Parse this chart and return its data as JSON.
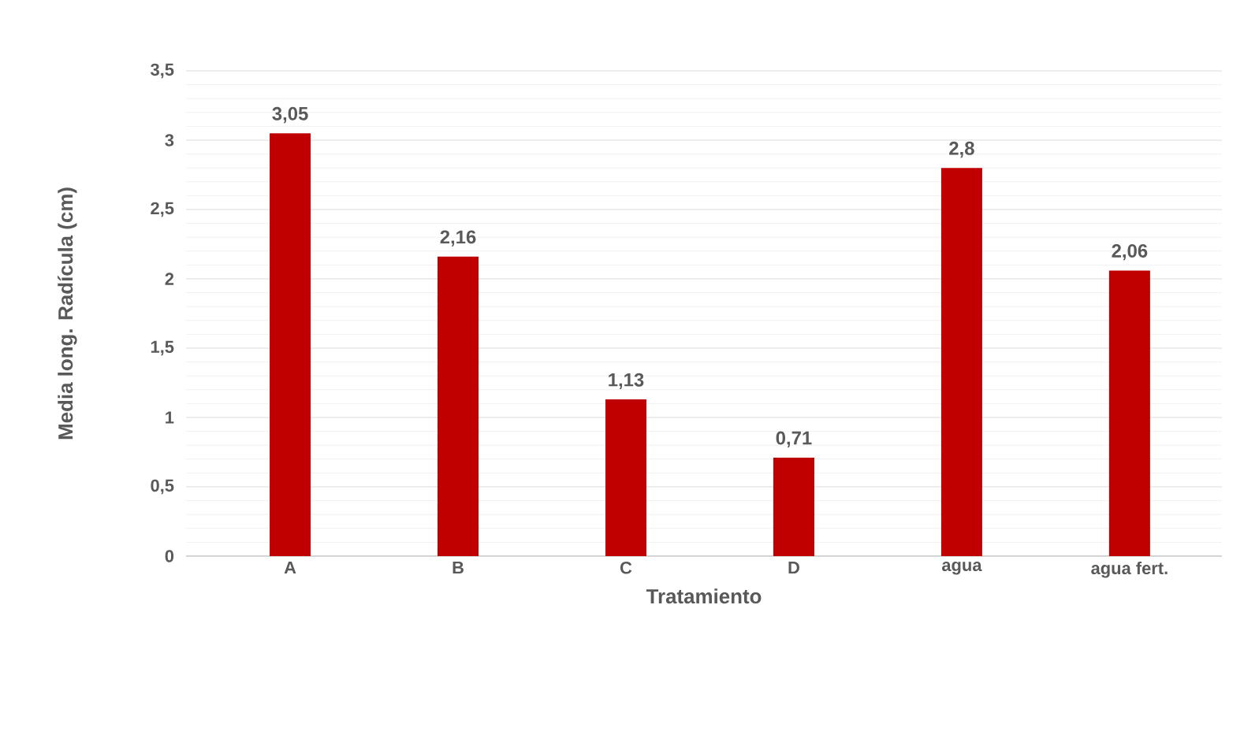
{
  "chart_data": {
    "type": "bar",
    "xlabel": "Tratamiento",
    "ylabel": "Media long. Radícula (cm)",
    "categories": [
      "A",
      "B",
      "C",
      "D",
      "agua",
      "agua fert."
    ],
    "values": [
      3.05,
      2.16,
      1.13,
      0.71,
      2.8,
      2.06
    ],
    "value_labels": [
      "3,05",
      "2,16",
      "1,13",
      "0,71",
      "2,8",
      "2,06"
    ],
    "color": "#c00000",
    "ylim": [
      0,
      3.5
    ],
    "yticks": [
      0,
      {
        "value": 0.5,
        "label": "0,5"
      },
      1,
      {
        "value": 1.5,
        "label": "1,5"
      },
      2,
      {
        "value": 2.5,
        "label": "2,5"
      },
      3,
      {
        "value": 3.5,
        "label": "3,5"
      }
    ],
    "grid": "y"
  }
}
